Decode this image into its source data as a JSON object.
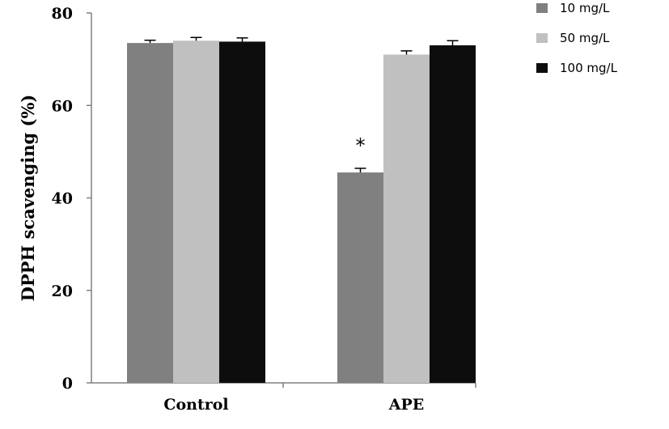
{
  "chart_data": {
    "type": "bar",
    "categories": [
      "Control",
      "APE"
    ],
    "series": [
      {
        "name": "10 mg/L",
        "color": "#808080",
        "values": [
          73.5,
          45.5
        ],
        "errors": [
          0.6,
          0.9
        ]
      },
      {
        "name": "50 mg/L",
        "color": "#c0c0c0",
        "values": [
          74.0,
          71.0
        ],
        "errors": [
          0.7,
          0.8
        ]
      },
      {
        "name": "100 mg/L",
        "color": "#0d0d0d",
        "values": [
          73.8,
          73.0
        ],
        "errors": [
          0.8,
          1.0
        ]
      }
    ],
    "ylabel": "DPPH scavenging (%)",
    "xlabel": "",
    "ylim": [
      0,
      80
    ],
    "yticks": [
      0,
      20,
      40,
      60,
      80
    ],
    "legend_position": "top-right",
    "grid": false,
    "annotations": [
      {
        "text": "*",
        "category": "APE",
        "series": "10 mg/L"
      }
    ]
  }
}
